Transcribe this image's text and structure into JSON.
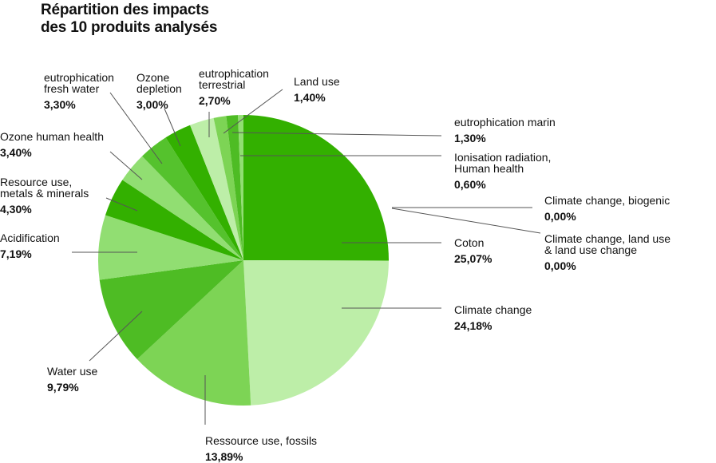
{
  "chart_data": {
    "type": "pie",
    "title": [
      "Répartition des impacts",
      "des 10 produits analysés"
    ],
    "slices": [
      {
        "label": [
          "Coton"
        ],
        "value": 25.07,
        "value_text": "25,07%",
        "color": "#33b000"
      },
      {
        "label": [
          "Climate change"
        ],
        "value": 24.18,
        "value_text": "24,18%",
        "color": "#bdeea8"
      },
      {
        "label": [
          "Ressource use, fossils"
        ],
        "value": 13.89,
        "value_text": "13,89%",
        "color": "#7dd455"
      },
      {
        "label": [
          "Water use"
        ],
        "value": 9.79,
        "value_text": "9,79%",
        "color": "#4ebc24"
      },
      {
        "label": [
          "Acidification"
        ],
        "value": 7.19,
        "value_text": "7,19%",
        "color": "#91de72"
      },
      {
        "label": [
          "Resource use,",
          "metals & minerals"
        ],
        "value": 4.3,
        "value_text": "4,30%",
        "color": "#33b000"
      },
      {
        "label": [
          "Ozone human health"
        ],
        "value": 3.4,
        "value_text": "3,40%",
        "color": "#91de72"
      },
      {
        "label": [
          "eutrophication",
          "fresh water"
        ],
        "value": 3.3,
        "value_text": "3,30%",
        "color": "#55c22d"
      },
      {
        "label": [
          "Ozone",
          "depletion"
        ],
        "value": 3.0,
        "value_text": "3,00%",
        "color": "#33b000"
      },
      {
        "label": [
          "eutrophication",
          "terrestrial"
        ],
        "value": 2.7,
        "value_text": "2,70%",
        "color": "#bdeea8"
      },
      {
        "label": [
          "Land use"
        ],
        "value": 1.4,
        "value_text": "1,40%",
        "color": "#7dd455"
      },
      {
        "label": [
          "eutrophication marin"
        ],
        "value": 1.3,
        "value_text": "1,30%",
        "color": "#4ebc24"
      },
      {
        "label": [
          "Ionisation radiation,",
          "Human health"
        ],
        "value": 0.6,
        "value_text": "0,60%",
        "color": "#91de72"
      },
      {
        "label": [
          "Climate change, biogenic"
        ],
        "value": 0.0,
        "value_text": "0,00%",
        "color": "#33b000"
      },
      {
        "label": [
          "Climate change, land use",
          "& land use change"
        ],
        "value": 0.0,
        "value_text": "0,00%",
        "color": "#33b000"
      }
    ]
  }
}
